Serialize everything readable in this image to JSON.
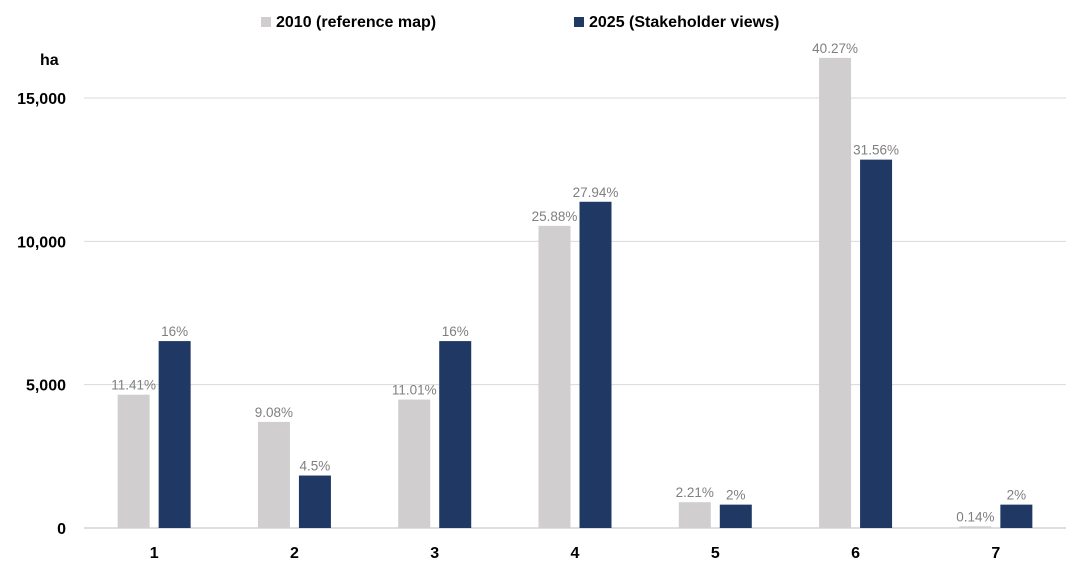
{
  "chart_data": {
    "type": "bar",
    "ylabel": "ha",
    "ylim": [
      0,
      17000
    ],
    "yticks": [
      {
        "value": 0,
        "label": "0"
      },
      {
        "value": 5000,
        "label": "5,000"
      },
      {
        "value": 10000,
        "label": "10,000"
      },
      {
        "value": 15000,
        "label": "15,000"
      }
    ],
    "grid": true,
    "legend_position": "top",
    "categories": [
      "1",
      "2",
      "3",
      "4",
      "5",
      "6",
      "7"
    ],
    "series": [
      {
        "name": "2010 (reference map)",
        "color": "#d0cece",
        "values": [
          4650,
          3700,
          4480,
          10540,
          900,
          16400,
          57
        ],
        "labels": [
          "11.41%",
          "9.08%",
          "11.01%",
          "25.88%",
          "2.21%",
          "40.27%",
          "0.14%"
        ]
      },
      {
        "name": "2025 (Stakeholder views)",
        "color": "#1f3864",
        "values": [
          6520,
          1830,
          6520,
          11380,
          815,
          12850,
          815
        ],
        "labels": [
          "16%",
          "4.5%",
          "16%",
          "27.94%",
          "2%",
          "31.56%",
          "2%"
        ]
      }
    ]
  }
}
